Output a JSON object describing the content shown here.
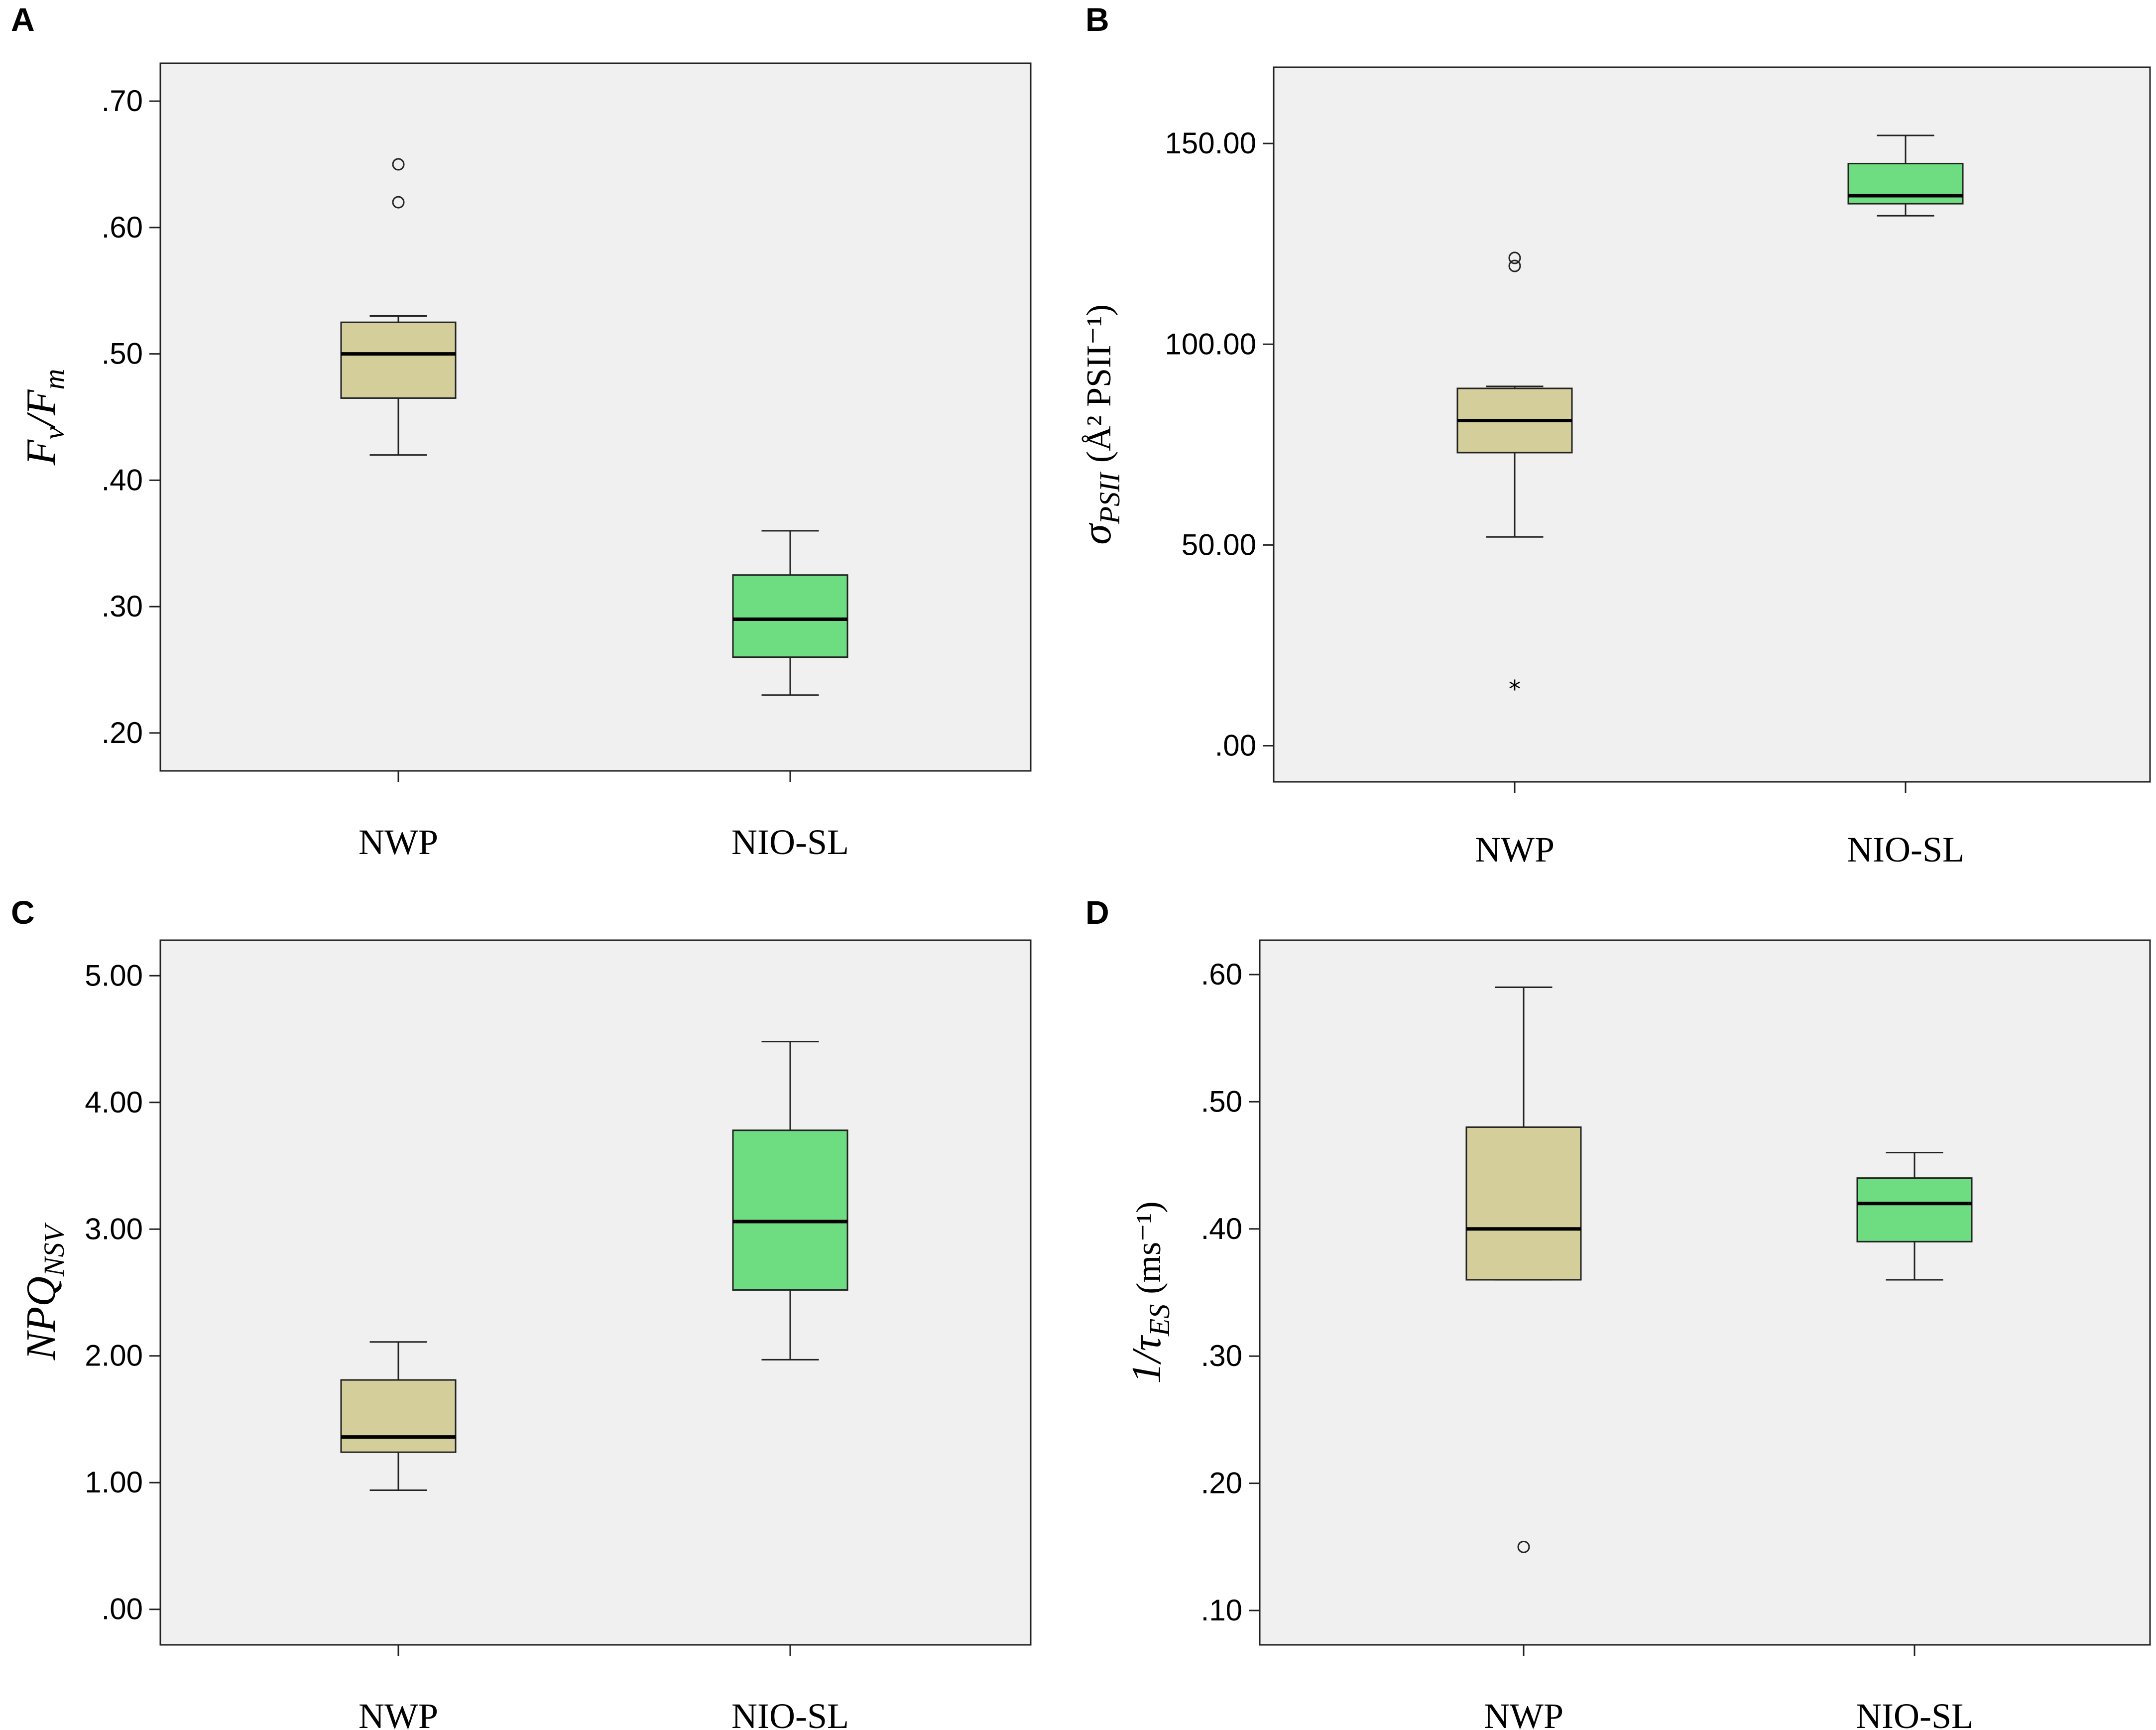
{
  "chart_data": [
    {
      "panel": "A",
      "type": "boxplot",
      "ylabel": {
        "main": "F",
        "sub": "v",
        "main2": "/F",
        "sub2": "m",
        "units": ""
      },
      "yticks": [
        0.2,
        0.3,
        0.4,
        0.5,
        0.6,
        0.7
      ],
      "ytick_labels": [
        ".20",
        ".30",
        ".40",
        ".50",
        ".60",
        ".70"
      ],
      "ylim": [
        0.17,
        0.73
      ],
      "categories": [
        "NWP",
        "NIO-SL"
      ],
      "colors": [
        "#d4cf9a",
        "#6edc80"
      ],
      "boxes": [
        {
          "whisker_low": 0.42,
          "q1": 0.465,
          "median": 0.5,
          "q3": 0.525,
          "whisker_high": 0.53,
          "outliers": [
            0.62,
            0.65
          ],
          "extremes": []
        },
        {
          "whisker_low": 0.23,
          "q1": 0.26,
          "median": 0.29,
          "q3": 0.325,
          "whisker_high": 0.36,
          "outliers": [],
          "extremes": []
        }
      ]
    },
    {
      "panel": "B",
      "type": "boxplot",
      "ylabel": {
        "main": "σ",
        "sub": "PSII",
        "units": "(Å² PSII⁻¹)"
      },
      "yticks": [
        0,
        50,
        100,
        150
      ],
      "ytick_labels": [
        ".00",
        "50.00",
        "100.00",
        "150.00"
      ],
      "ylim": [
        -9,
        169
      ],
      "categories": [
        "NWP",
        "NIO-SL"
      ],
      "colors": [
        "#d4cf9a",
        "#6edc80"
      ],
      "boxes": [
        {
          "whisker_low": 52,
          "q1": 73,
          "median": 81,
          "q3": 89,
          "whisker_high": 89.5,
          "outliers": [
            119.5,
            121.5
          ],
          "extremes": [
            15
          ]
        },
        {
          "whisker_low": 132,
          "q1": 135,
          "median": 137,
          "q3": 145,
          "whisker_high": 152,
          "outliers": [],
          "extremes": []
        }
      ]
    },
    {
      "panel": "C",
      "type": "boxplot",
      "ylabel": {
        "main": "NPQ",
        "sub": "NSV",
        "units": ""
      },
      "yticks": [
        0,
        1,
        2,
        3,
        4,
        5
      ],
      "ytick_labels": [
        ".00",
        "1.00",
        "2.00",
        "3.00",
        "4.00",
        "5.00"
      ],
      "ylim": [
        -0.28,
        5.28
      ],
      "categories": [
        "NWP",
        "NIO-SL"
      ],
      "colors": [
        "#d4cf9a",
        "#6edc80"
      ],
      "boxes": [
        {
          "whisker_low": 0.94,
          "q1": 1.24,
          "median": 1.36,
          "q3": 1.81,
          "whisker_high": 2.11,
          "outliers": [],
          "extremes": []
        },
        {
          "whisker_low": 1.97,
          "q1": 2.52,
          "median": 3.06,
          "q3": 3.78,
          "whisker_high": 4.48,
          "outliers": [],
          "extremes": []
        }
      ]
    },
    {
      "panel": "D",
      "type": "boxplot",
      "ylabel": {
        "main": "1/τ",
        "sub": "ES",
        "units": "(ms⁻¹)"
      },
      "yticks": [
        0.1,
        0.2,
        0.3,
        0.4,
        0.5,
        0.6
      ],
      "ytick_labels": [
        ".10",
        ".20",
        ".30",
        ".40",
        ".50",
        ".60"
      ],
      "ylim": [
        0.073,
        0.627
      ],
      "categories": [
        "NWP",
        "NIO-SL"
      ],
      "colors": [
        "#d4cf9a",
        "#6edc80"
      ],
      "boxes": [
        {
          "whisker_low": 0.36,
          "q1": 0.36,
          "median": 0.4,
          "q3": 0.48,
          "whisker_high": 0.59,
          "outliers": [
            0.15
          ],
          "extremes": []
        },
        {
          "whisker_low": 0.36,
          "q1": 0.39,
          "median": 0.42,
          "q3": 0.44,
          "whisker_high": 0.46,
          "outliers": [],
          "extremes": []
        }
      ]
    }
  ]
}
